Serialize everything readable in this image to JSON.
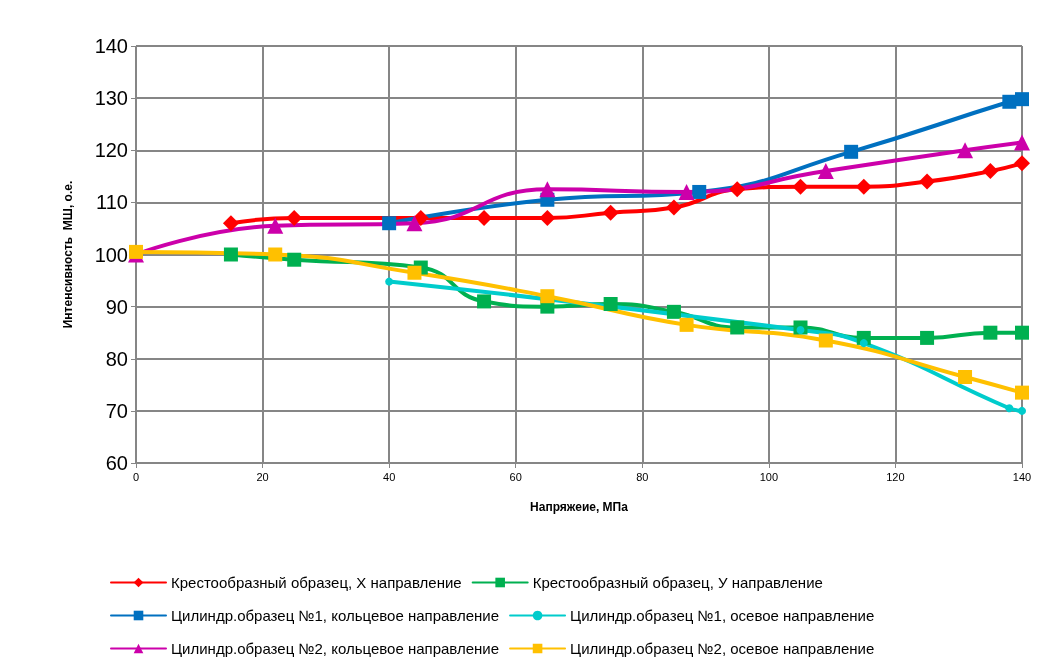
{
  "chart_data": {
    "type": "line",
    "xlabel": "Напряжеие, МПа",
    "ylabel": "Интенсивность  МШ, о.е.",
    "xlim": [
      0,
      140
    ],
    "xticks": [
      0,
      20,
      40,
      60,
      80,
      100,
      120,
      140
    ],
    "ylim": [
      60,
      140
    ],
    "yticks": [
      60,
      70,
      80,
      90,
      100,
      110,
      120,
      130,
      140
    ],
    "grid": true,
    "legend": "bottom",
    "series": [
      {
        "name": "Крестообразный образец, X направление",
        "color": "#ff0000",
        "marker": "diamond",
        "x": [
          15,
          25,
          45,
          55,
          65,
          75,
          85,
          95,
          105,
          115,
          125,
          135,
          140
        ],
        "values": [
          106,
          107,
          107,
          107,
          107,
          108,
          109,
          112.5,
          113,
          113,
          114,
          116,
          117.5
        ]
      },
      {
        "name": "Крестообразный образец, У направление",
        "color": "#00b050",
        "marker": "square",
        "x": [
          15,
          25,
          45,
          55,
          65,
          75,
          85,
          95,
          105,
          115,
          125,
          135,
          140
        ],
        "values": [
          100,
          99,
          97.5,
          91,
          90,
          90.5,
          89,
          86,
          86,
          84,
          84,
          85,
          85
        ]
      },
      {
        "name": "Цилиндр.образец №1, кольцевое направление",
        "color": "#0070c0",
        "marker": "square",
        "x": [
          40,
          65,
          89,
          113,
          138,
          140
        ],
        "values": [
          106,
          110.5,
          112,
          119.7,
          129.3,
          129.8
        ]
      },
      {
        "name": "Цилиндр.образец №1, осевое направление",
        "color": "#00cccc",
        "marker": "circle",
        "x": [
          40,
          65,
          88,
          105,
          115,
          138,
          140
        ],
        "values": [
          94.8,
          null,
          null,
          85.5,
          83,
          70.5,
          70
        ]
      },
      {
        "name": "Цилиндр.образец №2, кольцевое направление",
        "color": "#cc00aa",
        "marker": "triangle",
        "x": [
          0,
          22,
          44,
          65,
          87,
          109,
          131,
          140
        ],
        "values": [
          100,
          105.5,
          106,
          112.5,
          112,
          116,
          120,
          121.5
        ]
      },
      {
        "name": "Цилиндр.образец №2, осевое направление",
        "color": "#ffc000",
        "marker": "square",
        "x": [
          0,
          22,
          44,
          65,
          87,
          109,
          131,
          140
        ],
        "values": [
          100.5,
          100,
          96.5,
          92,
          86.5,
          83.5,
          76.5,
          73.5
        ]
      }
    ]
  }
}
